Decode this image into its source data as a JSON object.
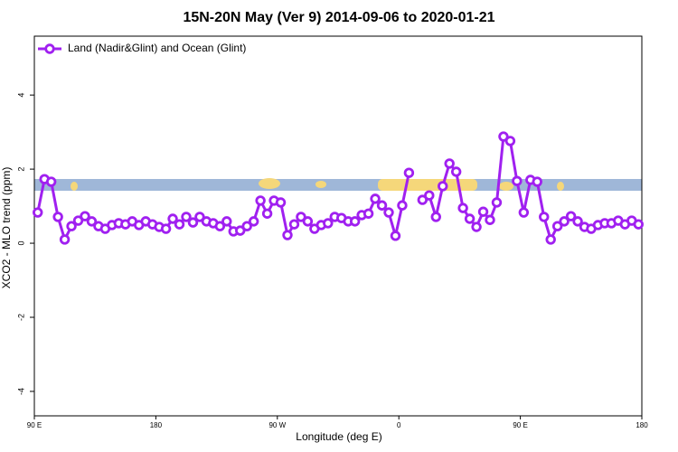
{
  "chart_data": {
    "type": "line",
    "title": "15N-20N May (Ver 9)   2014-09-06 to 2020-01-21",
    "xlabel": "Longitude (deg E)",
    "ylabel": "XCO2 - MLO trend (ppm)",
    "x": [
      92.5,
      97.5,
      102.5,
      107.5,
      112.5,
      117.5,
      122.5,
      127.5,
      132.5,
      137.5,
      142.5,
      147.5,
      152.5,
      157.5,
      162.5,
      167.5,
      172.5,
      177.5,
      182.5,
      187.5,
      192.5,
      197.5,
      202.5,
      207.5,
      212.5,
      217.5,
      222.5,
      227.5,
      232.5,
      237.5,
      242.5,
      247.5,
      252.5,
      257.5,
      262.5,
      267.5,
      272.5,
      277.5,
      282.5,
      287.5,
      292.5,
      297.5,
      302.5,
      307.5,
      312.5,
      317.5,
      322.5,
      327.5,
      332.5,
      337.5,
      342.5,
      347.5,
      352.5,
      357.5,
      362.5,
      367.5,
      372.5,
      377.5,
      382.5,
      387.5,
      392.5,
      397.5,
      402.5,
      407.5,
      412.5,
      417.5,
      422.5,
      427.5,
      432.5,
      437.5,
      442.5,
      447.5,
      452.5,
      457.5,
      462.5,
      467.5,
      472.5,
      477.5,
      482.5,
      487.5,
      492.5,
      497.5,
      502.5,
      507.5,
      512.5,
      517.5,
      522.5,
      527.5,
      532.5,
      537.5
    ],
    "series": [
      {
        "name": "Land (Nadir&Glint) and Ocean (Glint)",
        "color": "#a020f0",
        "values": [
          0.83,
          1.73,
          1.66,
          0.71,
          0.1,
          0.46,
          0.61,
          0.73,
          0.59,
          0.46,
          0.39,
          0.49,
          0.54,
          0.51,
          0.59,
          0.49,
          0.59,
          0.51,
          0.44,
          0.39,
          0.66,
          0.51,
          0.71,
          0.56,
          0.71,
          0.59,
          0.54,
          0.46,
          0.59,
          0.32,
          0.34,
          0.46,
          0.59,
          1.15,
          0.8,
          1.15,
          1.1,
          0.22,
          0.51,
          0.71,
          0.59,
          0.39,
          0.49,
          0.54,
          0.71,
          0.68,
          0.59,
          0.59,
          0.76,
          0.8,
          1.2,
          1.02,
          0.83,
          0.2,
          1.02,
          1.9,
          null,
          1.17,
          1.29,
          0.71,
          1.54,
          2.15,
          1.93,
          0.95,
          0.66,
          0.44,
          0.85,
          0.63,
          1.1,
          2.88,
          2.76,
          1.68,
          0.83,
          1.71,
          1.66,
          0.71,
          0.1,
          0.46,
          0.59,
          0.73,
          0.59,
          0.44,
          0.39,
          0.49,
          0.54,
          0.54,
          0.61,
          0.51,
          0.61,
          0.51
        ]
      }
    ],
    "xlim": [
      90,
      540
    ],
    "xticks": [
      {
        "value": 90,
        "label": "90 E"
      },
      180,
      {
        "value": 270,
        "label": "90 W"
      },
      {
        "value": 360,
        "label": "0"
      },
      {
        "value": 450,
        "label": "90 E"
      },
      {
        "value": 540,
        "label": "180"
      }
    ],
    "ylim": [
      -4.66,
      5.59
    ],
    "yticks": [
      -4,
      -2,
      0,
      2,
      4
    ],
    "legend": "top-left"
  }
}
